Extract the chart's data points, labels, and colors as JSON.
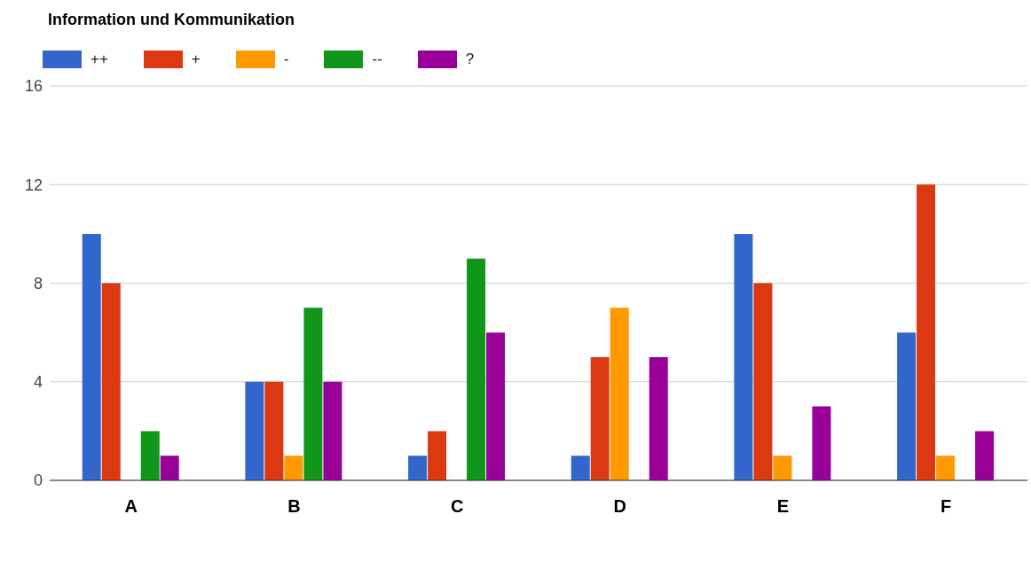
{
  "chart_data": {
    "type": "bar",
    "title": "Information und Kommunikation",
    "categories": [
      "A",
      "B",
      "C",
      "D",
      "E",
      "F"
    ],
    "series": [
      {
        "name": "++",
        "color": "#3366cc",
        "values": [
          10,
          4,
          1,
          1,
          10,
          6
        ]
      },
      {
        "name": "+",
        "color": "#dc3912",
        "values": [
          8,
          4,
          2,
          5,
          8,
          12
        ]
      },
      {
        "name": "-",
        "color": "#ff9900",
        "values": [
          0,
          1,
          0,
          7,
          1,
          1
        ]
      },
      {
        "name": "--",
        "color": "#109618",
        "values": [
          2,
          7,
          9,
          0,
          0,
          0
        ]
      },
      {
        "name": "?",
        "color": "#990099",
        "values": [
          1,
          4,
          6,
          5,
          3,
          2
        ]
      }
    ],
    "ylim": [
      0,
      16
    ],
    "yticks": [
      0,
      4,
      8,
      12,
      16
    ],
    "grid": "y",
    "legend": "top left"
  }
}
